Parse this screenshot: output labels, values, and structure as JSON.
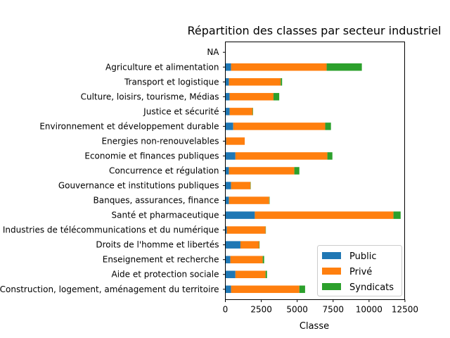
{
  "chart_data": {
    "type": "bar",
    "orientation": "horizontal",
    "stacked": true,
    "title": "Répartition des classes par secteur industriel",
    "xlabel": "Classe",
    "ylabel": "",
    "xlim": [
      0,
      12750
    ],
    "xticks": [
      0,
      2500,
      5000,
      7500,
      10000,
      12500
    ],
    "xtick_labels": [
      "0",
      "2500",
      "5000",
      "7500",
      "10000",
      "12500"
    ],
    "grid": false,
    "legend_position": "lower right",
    "categories": [
      "Construction, logement, aménagement du territoire",
      "Aide et protection sociale",
      "Enseignement et recherche",
      "Droits de l'homme et libertés",
      "Industries de télécommunications et du numérique",
      "Santé et pharmaceutique",
      "Banques, assurances, finance",
      "Gouvernance et institutions publiques",
      "Concurrence et régulation",
      "Economie et finances publiques",
      "Energies non-renouvelables",
      "Environnement et développement durable",
      "Justice et sécurité",
      "Culture, loisirs, tourisme, Médias",
      "Transport et logistique",
      "Agriculture et alimentation",
      "NA"
    ],
    "series": [
      {
        "name": "Public",
        "color": "#1f77b4",
        "values": [
          400,
          700,
          350,
          1050,
          100,
          2050,
          250,
          400,
          250,
          700,
          50,
          550,
          300,
          300,
          250,
          400,
          0
        ]
      },
      {
        "name": "Privé",
        "color": "#ff7f0e",
        "values": [
          4750,
          2100,
          2250,
          1300,
          2700,
          9650,
          2800,
          1350,
          4550,
          6400,
          1300,
          6400,
          1600,
          3050,
          3600,
          6650,
          0
        ]
      },
      {
        "name": "Syndicats",
        "color": "#2ca02c",
        "values": [
          400,
          100,
          100,
          30,
          20,
          500,
          30,
          20,
          350,
          350,
          0,
          400,
          30,
          400,
          100,
          2450,
          0
        ]
      }
    ]
  }
}
